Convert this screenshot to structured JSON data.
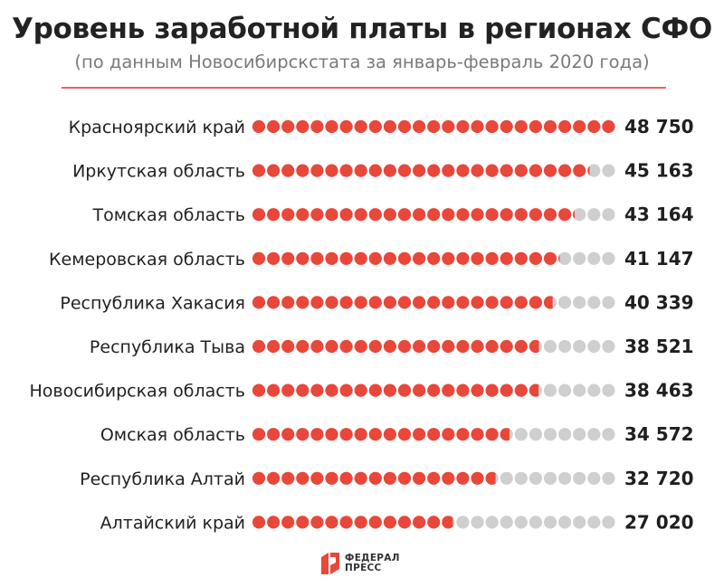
{
  "header": {
    "title": "Уровень заработной платы в регионах СФО",
    "subtitle": "(по данным Новосибирскстата за январь-февраль 2020 года)"
  },
  "colors": {
    "filled": "#e8473a",
    "empty": "#cfcfcf",
    "divider": "#e7655a"
  },
  "chart_data": {
    "type": "bar",
    "style": "dot-matrix",
    "categories": [
      "Красноярский край",
      "Иркутская область",
      "Томская область",
      "Кемеровская область",
      "Республика Хакасия",
      "Республика Тыва",
      "Новосибирская область",
      "Омская область",
      "Республика Алтай",
      "Алтайский край"
    ],
    "values": [
      48750,
      45163,
      43164,
      41147,
      40339,
      38521,
      38463,
      34572,
      32720,
      27020
    ],
    "value_labels": [
      "48 750",
      "45 163",
      "43 164",
      "41 147",
      "40 339",
      "38 521",
      "38 463",
      "34 572",
      "32 720",
      "27 020"
    ],
    "max_value": 48750,
    "dots_per_row": 25,
    "title": "Уровень заработной платы в регионах СФО",
    "xlabel": "",
    "ylabel": "",
    "grid": false,
    "legend": "none"
  },
  "logo": {
    "line1": "ФЕДЕРАЛ",
    "line2": "ПРЕСС"
  }
}
